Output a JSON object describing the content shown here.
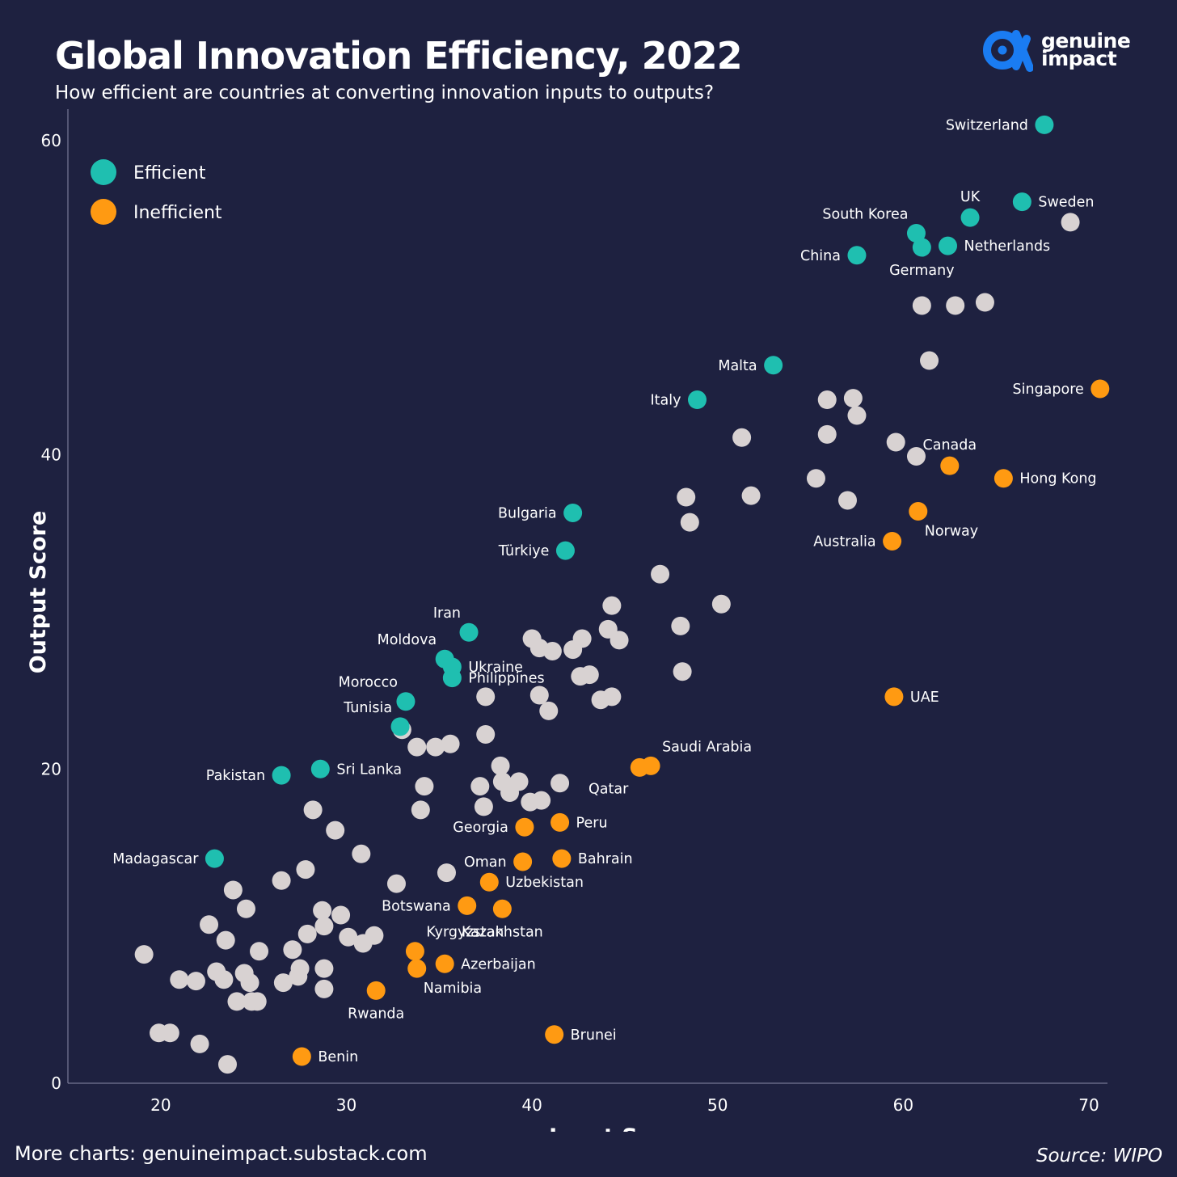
{
  "header": {
    "title": "Global Innovation Efficiency, 2022",
    "subtitle": "How efficient are countries at converting innovation inputs to outputs?"
  },
  "brand": {
    "line1": "genuine",
    "line2": "impact",
    "icon": "alpha-eye-logo-icon",
    "color": "#1a7cf2"
  },
  "footer": {
    "more": "More charts: genuineimpact.substack.com",
    "source": "Source: WIPO"
  },
  "chart_data": {
    "type": "scatter",
    "title": "Global Innovation Efficiency, 2022",
    "xlabel": "Input Score",
    "ylabel": "Output Score",
    "xlim": [
      15,
      71
    ],
    "ylim": [
      0,
      62
    ],
    "xticks": [
      20,
      30,
      40,
      50,
      60,
      70
    ],
    "yticks": [
      0,
      20,
      40,
      60
    ],
    "grid": false,
    "legend_position": "top-left",
    "colors": {
      "Efficient": "#1fbfb0",
      "Inefficient": "#ff9a12",
      "Other": "#d8d2d2"
    },
    "legend": [
      {
        "label": "Efficient",
        "category": "Efficient"
      },
      {
        "label": "Inefficient",
        "category": "Inefficient"
      }
    ],
    "labeled_points": [
      {
        "name": "Switzerland",
        "x": 67.6,
        "y": 61.0,
        "category": "Efficient",
        "label_pos": "left"
      },
      {
        "name": "Sweden",
        "x": 66.4,
        "y": 56.1,
        "category": "Efficient",
        "label_pos": "right"
      },
      {
        "name": "UK",
        "x": 63.6,
        "y": 55.1,
        "category": "Efficient",
        "label_pos": "above"
      },
      {
        "name": "South Korea",
        "x": 60.7,
        "y": 54.1,
        "category": "Efficient",
        "label_pos": "aboveleft"
      },
      {
        "name": "Netherlands",
        "x": 62.4,
        "y": 53.3,
        "category": "Efficient",
        "label_pos": "right"
      },
      {
        "name": "Germany",
        "x": 61.0,
        "y": 53.2,
        "category": "Efficient",
        "label_pos": "below"
      },
      {
        "name": "China",
        "x": 57.5,
        "y": 52.7,
        "category": "Efficient",
        "label_pos": "left"
      },
      {
        "name": "Malta",
        "x": 53.0,
        "y": 45.7,
        "category": "Efficient",
        "label_pos": "left"
      },
      {
        "name": "Italy",
        "x": 48.9,
        "y": 43.5,
        "category": "Efficient",
        "label_pos": "left"
      },
      {
        "name": "Singapore",
        "x": 70.6,
        "y": 44.2,
        "category": "Inefficient",
        "label_pos": "left"
      },
      {
        "name": "Canada",
        "x": 62.5,
        "y": 39.3,
        "category": "Inefficient",
        "label_pos": "above"
      },
      {
        "name": "Hong Kong",
        "x": 65.4,
        "y": 38.5,
        "category": "Inefficient",
        "label_pos": "right"
      },
      {
        "name": "Norway",
        "x": 60.8,
        "y": 36.4,
        "category": "Inefficient",
        "label_pos": "belowright"
      },
      {
        "name": "Australia",
        "x": 59.4,
        "y": 34.5,
        "category": "Inefficient",
        "label_pos": "left"
      },
      {
        "name": "Bulgaria",
        "x": 42.2,
        "y": 36.3,
        "category": "Efficient",
        "label_pos": "left"
      },
      {
        "name": "Türkiye",
        "x": 41.8,
        "y": 33.9,
        "category": "Efficient",
        "label_pos": "left"
      },
      {
        "name": "Iran",
        "x": 36.6,
        "y": 28.7,
        "category": "Efficient",
        "label_pos": "aboveleft"
      },
      {
        "name": "Moldova",
        "x": 35.3,
        "y": 27.0,
        "category": "Efficient",
        "label_pos": "aboveleft"
      },
      {
        "name": "Ukraine",
        "x": 35.7,
        "y": 26.5,
        "category": "Efficient",
        "label_pos": "right"
      },
      {
        "name": "Philippines",
        "x": 35.7,
        "y": 25.8,
        "category": "Efficient",
        "label_pos": "right"
      },
      {
        "name": "Morocco",
        "x": 33.2,
        "y": 24.3,
        "category": "Efficient",
        "label_pos": "aboveleft"
      },
      {
        "name": "Tunisia",
        "x": 32.9,
        "y": 22.7,
        "category": "Efficient",
        "label_pos": "aboveleft"
      },
      {
        "name": "UAE",
        "x": 59.5,
        "y": 24.6,
        "category": "Inefficient",
        "label_pos": "right"
      },
      {
        "name": "Sri Lanka",
        "x": 28.6,
        "y": 20.0,
        "category": "Efficient",
        "label_pos": "right"
      },
      {
        "name": "Pakistan",
        "x": 26.5,
        "y": 19.6,
        "category": "Efficient",
        "label_pos": "left"
      },
      {
        "name": "Saudi Arabia",
        "x": 46.4,
        "y": 20.2,
        "category": "Inefficient",
        "label_pos": "aboveright"
      },
      {
        "name": "Qatar",
        "x": 45.8,
        "y": 20.1,
        "category": "Inefficient",
        "label_pos": "belowleft"
      },
      {
        "name": "Georgia",
        "x": 39.6,
        "y": 16.3,
        "category": "Inefficient",
        "label_pos": "left"
      },
      {
        "name": "Peru",
        "x": 41.5,
        "y": 16.6,
        "category": "Inefficient",
        "label_pos": "right"
      },
      {
        "name": "Madagascar",
        "x": 22.9,
        "y": 14.3,
        "category": "Efficient",
        "label_pos": "left"
      },
      {
        "name": "Oman",
        "x": 39.5,
        "y": 14.1,
        "category": "Inefficient",
        "label_pos": "left"
      },
      {
        "name": "Bahrain",
        "x": 41.6,
        "y": 14.3,
        "category": "Inefficient",
        "label_pos": "right"
      },
      {
        "name": "Uzbekistan",
        "x": 37.7,
        "y": 12.8,
        "category": "Inefficient",
        "label_pos": "right"
      },
      {
        "name": "Botswana",
        "x": 36.5,
        "y": 11.3,
        "category": "Inefficient",
        "label_pos": "left"
      },
      {
        "name": "Kazakhstan",
        "x": 38.4,
        "y": 11.1,
        "category": "Inefficient",
        "label_pos": "below"
      },
      {
        "name": "Kyrgyzstan",
        "x": 33.7,
        "y": 8.4,
        "category": "Inefficient",
        "label_pos": "aboveright"
      },
      {
        "name": "Azerbaijan",
        "x": 35.3,
        "y": 7.6,
        "category": "Inefficient",
        "label_pos": "right"
      },
      {
        "name": "Namibia",
        "x": 33.8,
        "y": 7.3,
        "category": "Inefficient",
        "label_pos": "belowright"
      },
      {
        "name": "Rwanda",
        "x": 31.6,
        "y": 5.9,
        "category": "Inefficient",
        "label_pos": "below"
      },
      {
        "name": "Brunei",
        "x": 41.2,
        "y": 3.1,
        "category": "Inefficient",
        "label_pos": "right"
      },
      {
        "name": "Benin",
        "x": 27.6,
        "y": 1.7,
        "category": "Inefficient",
        "label_pos": "right"
      }
    ],
    "other_points": [
      [
        69.0,
        54.8
      ],
      [
        61.0,
        49.5
      ],
      [
        62.8,
        49.5
      ],
      [
        64.4,
        49.7
      ],
      [
        61.4,
        46.0
      ],
      [
        57.3,
        43.6
      ],
      [
        55.9,
        43.5
      ],
      [
        57.5,
        42.5
      ],
      [
        55.9,
        41.3
      ],
      [
        51.3,
        41.1
      ],
      [
        59.6,
        40.8
      ],
      [
        60.7,
        39.9
      ],
      [
        55.3,
        38.5
      ],
      [
        51.8,
        37.4
      ],
      [
        57.0,
        37.1
      ],
      [
        48.3,
        37.3
      ],
      [
        48.5,
        35.7
      ],
      [
        46.9,
        32.4
      ],
      [
        50.2,
        30.5
      ],
      [
        44.3,
        30.4
      ],
      [
        48.0,
        29.1
      ],
      [
        44.1,
        28.9
      ],
      [
        44.7,
        28.2
      ],
      [
        40.0,
        28.3
      ],
      [
        40.4,
        27.7
      ],
      [
        42.7,
        28.3
      ],
      [
        41.1,
        27.5
      ],
      [
        42.2,
        27.6
      ],
      [
        48.1,
        26.2
      ],
      [
        42.6,
        25.9
      ],
      [
        43.1,
        26.0
      ],
      [
        37.5,
        24.6
      ],
      [
        40.4,
        24.7
      ],
      [
        43.7,
        24.4
      ],
      [
        44.3,
        24.6
      ],
      [
        40.9,
        23.7
      ],
      [
        33.0,
        22.5
      ],
      [
        37.5,
        22.2
      ],
      [
        33.8,
        21.4
      ],
      [
        34.8,
        21.4
      ],
      [
        35.6,
        21.6
      ],
      [
        38.3,
        20.2
      ],
      [
        38.4,
        19.2
      ],
      [
        39.3,
        19.2
      ],
      [
        38.8,
        18.5
      ],
      [
        34.2,
        18.9
      ],
      [
        37.2,
        18.9
      ],
      [
        41.5,
        19.1
      ],
      [
        39.9,
        17.9
      ],
      [
        40.5,
        18.0
      ],
      [
        37.4,
        17.6
      ],
      [
        34.0,
        17.4
      ],
      [
        28.2,
        17.4
      ],
      [
        29.4,
        16.1
      ],
      [
        30.8,
        14.6
      ],
      [
        35.4,
        13.4
      ],
      [
        27.8,
        13.6
      ],
      [
        26.5,
        12.9
      ],
      [
        32.7,
        12.7
      ],
      [
        23.9,
        12.3
      ],
      [
        24.6,
        11.1
      ],
      [
        28.7,
        11.0
      ],
      [
        29.7,
        10.7
      ],
      [
        22.6,
        10.1
      ],
      [
        28.8,
        10.0
      ],
      [
        27.9,
        9.5
      ],
      [
        30.1,
        9.3
      ],
      [
        31.5,
        9.4
      ],
      [
        23.5,
        9.1
      ],
      [
        30.9,
        8.9
      ],
      [
        27.1,
        8.5
      ],
      [
        25.3,
        8.4
      ],
      [
        19.1,
        8.2
      ],
      [
        27.5,
        7.3
      ],
      [
        28.8,
        7.3
      ],
      [
        23.0,
        7.1
      ],
      [
        24.5,
        7.0
      ],
      [
        27.4,
        6.8
      ],
      [
        21.0,
        6.6
      ],
      [
        21.9,
        6.5
      ],
      [
        23.4,
        6.6
      ],
      [
        24.8,
        6.4
      ],
      [
        26.6,
        6.4
      ],
      [
        28.8,
        6.0
      ],
      [
        24.1,
        5.2
      ],
      [
        24.9,
        5.2
      ],
      [
        25.2,
        5.2
      ],
      [
        19.9,
        3.2
      ],
      [
        20.5,
        3.2
      ],
      [
        22.1,
        2.5
      ],
      [
        23.6,
        1.2
      ]
    ]
  }
}
